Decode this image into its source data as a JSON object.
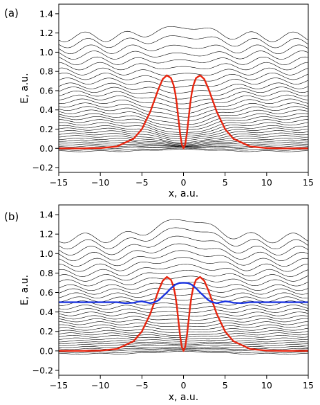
{
  "chart_data": [
    {
      "panel": "(a)",
      "type": "line",
      "xlabel": "x, a.u.",
      "ylabel": "E, a.u.",
      "xlim": [
        -15,
        15
      ],
      "ylim": [
        -0.25,
        1.5
      ],
      "x_ticks": [
        "−15",
        "−10",
        "−5",
        "0",
        "5",
        "10",
        "15"
      ],
      "x_tick_values": [
        -15,
        -10,
        -5,
        0,
        5,
        10,
        15
      ],
      "y_ticks": [
        "−0.2",
        "0.0",
        "0.2",
        "0.4",
        "0.6",
        "0.8",
        "1.0",
        "1.2",
        "1.4"
      ],
      "y_tick_values": [
        -0.2,
        0.0,
        0.2,
        0.4,
        0.6,
        0.8,
        1.0,
        1.2,
        1.4
      ],
      "background_bands": {
        "color": "#000000",
        "count": 34,
        "energy_at_edges": [
          -0.03,
          -0.015,
          0.005,
          0.02,
          0.04,
          0.06,
          0.08,
          0.1,
          0.125,
          0.15,
          0.175,
          0.2,
          0.225,
          0.255,
          0.285,
          0.315,
          0.345,
          0.38,
          0.415,
          0.45,
          0.49,
          0.53,
          0.57,
          0.61,
          0.65,
          0.7,
          0.75,
          0.8,
          0.855,
          0.91,
          0.97,
          1.03,
          1.095,
          1.16
        ],
        "energy_at_center": [
          -0.01,
          0.0,
          0.01,
          0.015,
          0.02,
          0.025,
          0.03,
          0.04,
          0.05,
          0.06,
          0.08,
          0.1,
          0.12,
          0.14,
          0.16,
          0.19,
          0.22,
          0.25,
          0.29,
          0.33,
          0.37,
          0.42,
          0.47,
          0.52,
          0.58,
          0.64,
          0.7,
          0.77,
          0.84,
          0.91,
          0.98,
          1.06,
          1.16,
          1.26
        ]
      },
      "series": [
        {
          "color": "#e8250f",
          "x": [
            -15,
            -12,
            -10,
            -8,
            -6,
            -5,
            -4,
            -3,
            -2.5,
            -2,
            -1.5,
            -1.2,
            -1,
            -0.8,
            -0.6,
            -0.4,
            -0.2,
            0,
            0.2,
            0.4,
            0.6,
            0.8,
            1,
            1.2,
            1.5,
            2,
            2.5,
            3,
            4,
            5,
            6,
            8,
            10,
            12,
            15
          ],
          "y": [
            0.0,
            0.0,
            0.003,
            0.02,
            0.1,
            0.2,
            0.38,
            0.62,
            0.72,
            0.76,
            0.73,
            0.66,
            0.58,
            0.46,
            0.3,
            0.15,
            0.04,
            0.0,
            0.04,
            0.15,
            0.3,
            0.46,
            0.58,
            0.66,
            0.73,
            0.76,
            0.72,
            0.62,
            0.38,
            0.2,
            0.1,
            0.02,
            0.003,
            0.0,
            0.0
          ]
        }
      ]
    },
    {
      "panel": "(b)",
      "type": "line",
      "xlabel": "x, a.u.",
      "ylabel": "E, a.u.",
      "xlim": [
        -15,
        15
      ],
      "ylim": [
        -0.25,
        1.5
      ],
      "x_ticks": [
        "−15",
        "−10",
        "−5",
        "0",
        "5",
        "10",
        "15"
      ],
      "x_tick_values": [
        -15,
        -10,
        -5,
        0,
        5,
        10,
        15
      ],
      "y_ticks": [
        "−0.2",
        "0.0",
        "0.2",
        "0.4",
        "0.6",
        "0.8",
        "1.0",
        "1.2",
        "1.4"
      ],
      "y_tick_values": [
        -0.2,
        0.0,
        0.2,
        0.4,
        0.6,
        0.8,
        1.0,
        1.2,
        1.4
      ],
      "background_bands": {
        "color": "#000000",
        "count": 34,
        "energy_at_edges": [
          -0.03,
          -0.015,
          0.005,
          0.02,
          0.04,
          0.06,
          0.08,
          0.1,
          0.125,
          0.15,
          0.175,
          0.2,
          0.225,
          0.255,
          0.285,
          0.315,
          0.345,
          0.38,
          0.415,
          0.45,
          0.49,
          0.53,
          0.57,
          0.61,
          0.65,
          0.7,
          0.75,
          0.8,
          0.855,
          0.91,
          0.97,
          1.03,
          1.095,
          1.16
        ],
        "energy_at_center": [
          -0.005,
          0.005,
          0.015,
          0.025,
          0.035,
          0.05,
          0.065,
          0.08,
          0.1,
          0.12,
          0.14,
          0.16,
          0.19,
          0.22,
          0.25,
          0.28,
          0.32,
          0.36,
          0.4,
          0.44,
          0.48,
          0.53,
          0.58,
          0.64,
          0.7,
          0.76,
          0.82,
          0.88,
          0.95,
          1.02,
          1.09,
          1.17,
          1.26,
          1.35
        ]
      },
      "series": [
        {
          "color": "#e8250f",
          "x": [
            -15,
            -12,
            -10,
            -8,
            -6,
            -5,
            -4,
            -3,
            -2.5,
            -2,
            -1.5,
            -1.2,
            -1,
            -0.8,
            -0.6,
            -0.4,
            -0.2,
            0,
            0.2,
            0.4,
            0.6,
            0.8,
            1,
            1.2,
            1.5,
            2,
            2.5,
            3,
            4,
            5,
            6,
            8,
            10,
            12,
            15
          ],
          "y": [
            0.0,
            0.0,
            0.003,
            0.02,
            0.1,
            0.2,
            0.38,
            0.62,
            0.72,
            0.76,
            0.73,
            0.66,
            0.58,
            0.46,
            0.3,
            0.15,
            0.04,
            0.0,
            0.04,
            0.15,
            0.3,
            0.46,
            0.58,
            0.66,
            0.73,
            0.76,
            0.72,
            0.62,
            0.38,
            0.2,
            0.1,
            0.02,
            0.003,
            0.0,
            0.0
          ]
        },
        {
          "color": "#1d36e0",
          "x": [
            -15,
            -10,
            -8,
            -7,
            -6,
            -5.5,
            -5,
            -4.5,
            -4,
            -3.5,
            -3,
            -2.5,
            -2,
            -1.5,
            -1,
            -0.5,
            0,
            0.5,
            1,
            1.5,
            2,
            2.5,
            3,
            3.5,
            4,
            4.5,
            5,
            5.5,
            6,
            7,
            8,
            10,
            15
          ],
          "y": [
            0.5,
            0.5,
            0.5,
            0.49,
            0.495,
            0.505,
            0.51,
            0.5,
            0.49,
            0.5,
            0.52,
            0.56,
            0.6,
            0.645,
            0.68,
            0.698,
            0.7,
            0.698,
            0.68,
            0.645,
            0.6,
            0.56,
            0.52,
            0.5,
            0.49,
            0.5,
            0.51,
            0.505,
            0.495,
            0.49,
            0.5,
            0.5,
            0.5
          ]
        }
      ]
    }
  ]
}
